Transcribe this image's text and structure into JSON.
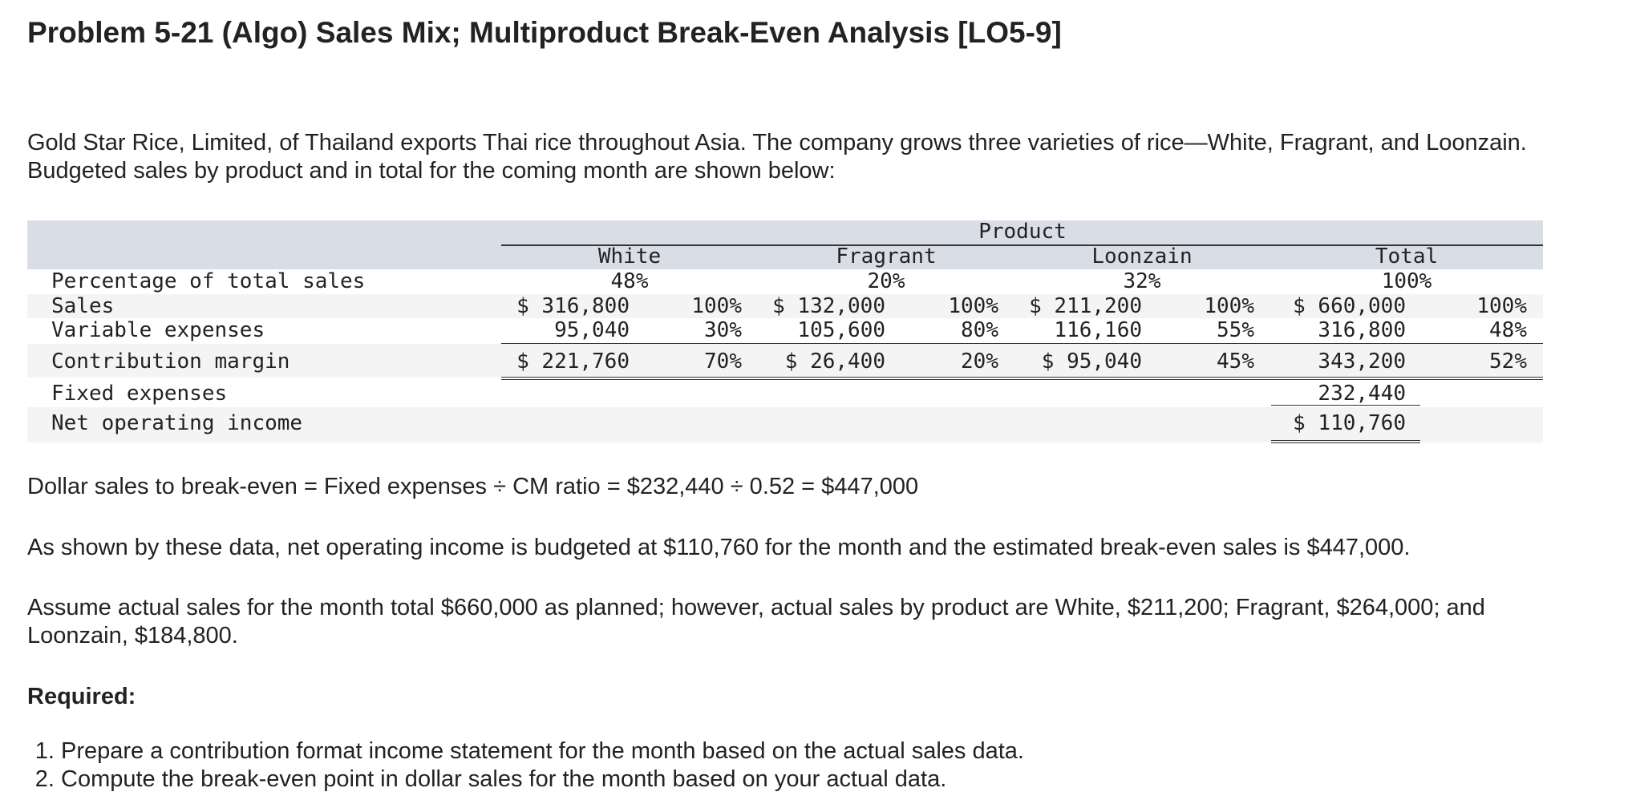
{
  "header": {
    "title": "Problem 5-21 (Algo) Sales Mix; Multiproduct Break-Even Analysis [LO5-9]"
  },
  "intro": "Gold Star Rice, Limited, of Thailand exports Thai rice throughout Asia. The company grows three varieties of rice—White, Fragrant, and Loonzain. Budgeted sales by product and in total for the coming month are shown below:",
  "table": {
    "group_header": "Product",
    "columns": [
      "White",
      "Fragrant",
      "Loonzain",
      "Total"
    ],
    "rows": [
      {
        "label": "Percentage of total sales",
        "cells": [
          "48%",
          null,
          "20%",
          null,
          "32%",
          null,
          "100%",
          null
        ]
      },
      {
        "label": "Sales",
        "cells": [
          "$ 316,800",
          "100%",
          "$ 132,000",
          "100%",
          "$ 211,200",
          "100%",
          "$ 660,000",
          "100%"
        ]
      },
      {
        "label": "Variable expenses",
        "cells": [
          "95,040",
          "30%",
          "105,600",
          "80%",
          "116,160",
          "55%",
          "316,800",
          "48%"
        ]
      },
      {
        "label": "Contribution margin",
        "cells": [
          "$ 221,760",
          "70%",
          "$ 26,400",
          "20%",
          "$ 95,040",
          "45%",
          "343,200",
          "52%"
        ]
      },
      {
        "label": "Fixed expenses",
        "cells": [
          null,
          null,
          null,
          null,
          null,
          null,
          "232,440",
          null
        ]
      },
      {
        "label": "Net operating income",
        "cells": [
          null,
          null,
          null,
          null,
          null,
          null,
          "$ 110,760",
          null
        ]
      }
    ]
  },
  "paragraphs": [
    "Dollar sales to break-even = Fixed expenses ÷ CM ratio = $232,440 ÷ 0.52 = $447,000",
    "As shown by these data, net operating income is budgeted at $110,760 for the month and the estimated break-even sales is $447,000.",
    "Assume actual sales for the month total $660,000 as planned; however, actual sales by product are White, $211,200; Fragrant, $264,000; and Loonzain, $184,800."
  ],
  "required": {
    "heading": "Required:",
    "items": [
      "Prepare a contribution format income statement for the month based on the actual sales data.",
      "Compute the break-even point in dollar sales for the month based on your actual data."
    ]
  }
}
